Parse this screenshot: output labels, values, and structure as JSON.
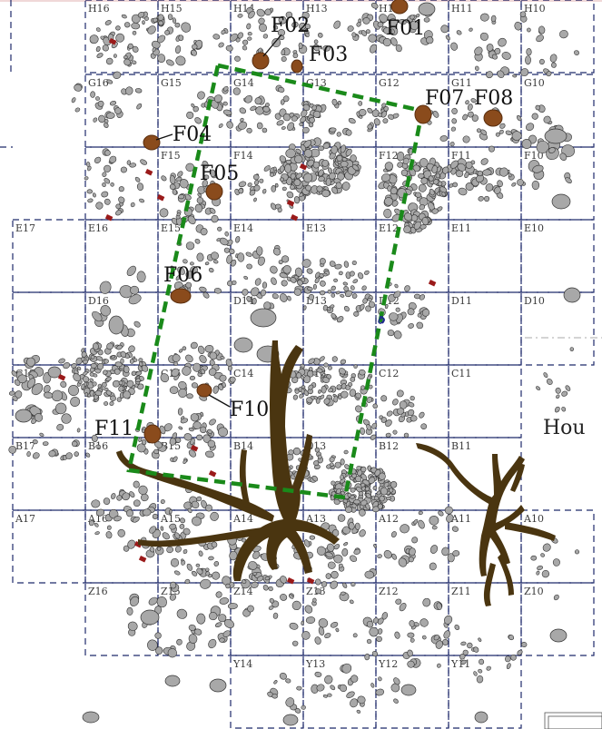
{
  "map": {
    "colors": {
      "grid": "#1f2a6b",
      "stone_fill": "#a8a8a8",
      "stone_stroke": "#333333",
      "feature_fill": "#8a4b1c",
      "feature_stroke": "#5a2e0e",
      "root_fill": "#4a3510",
      "trench": "#1a8a1a",
      "red_marker": "#9a1a1a"
    },
    "grid_labels": [
      {
        "id": "H16",
        "text": "H16"
      },
      {
        "id": "H15",
        "text": "H15"
      },
      {
        "id": "H14",
        "text": "H14"
      },
      {
        "id": "H13",
        "text": "H13"
      },
      {
        "id": "H12",
        "text": "H12"
      },
      {
        "id": "H11",
        "text": "H11"
      },
      {
        "id": "H10",
        "text": "H10"
      },
      {
        "id": "G16",
        "text": "G16"
      },
      {
        "id": "G15",
        "text": "G15"
      },
      {
        "id": "G14",
        "text": "G14"
      },
      {
        "id": "G13",
        "text": "G13"
      },
      {
        "id": "G12",
        "text": "G12"
      },
      {
        "id": "G11",
        "text": "G11"
      },
      {
        "id": "G10",
        "text": "G10"
      },
      {
        "id": "F15",
        "text": "F15"
      },
      {
        "id": "F14",
        "text": "F14"
      },
      {
        "id": "F12",
        "text": "F12"
      },
      {
        "id": "F11",
        "text": "F11"
      },
      {
        "id": "F10",
        "text": "F10"
      },
      {
        "id": "E17",
        "text": "E17"
      },
      {
        "id": "E16",
        "text": "E16"
      },
      {
        "id": "E15",
        "text": "E15"
      },
      {
        "id": "E14",
        "text": "E14"
      },
      {
        "id": "E13",
        "text": "E13"
      },
      {
        "id": "E12",
        "text": "E12"
      },
      {
        "id": "E11",
        "text": "E11"
      },
      {
        "id": "E10",
        "text": "E10"
      },
      {
        "id": "D16",
        "text": "D16"
      },
      {
        "id": "D14",
        "text": "D14"
      },
      {
        "id": "D13",
        "text": "D13"
      },
      {
        "id": "D12",
        "text": "D12"
      },
      {
        "id": "D11",
        "text": "D11"
      },
      {
        "id": "D10",
        "text": "D10"
      },
      {
        "id": "C17",
        "text": "C17"
      },
      {
        "id": "C15",
        "text": "C15"
      },
      {
        "id": "C14",
        "text": "C14"
      },
      {
        "id": "C13",
        "text": "C13"
      },
      {
        "id": "C12",
        "text": "C12"
      },
      {
        "id": "C11",
        "text": "C11"
      },
      {
        "id": "B17",
        "text": "B17"
      },
      {
        "id": "B16",
        "text": "B16"
      },
      {
        "id": "B15",
        "text": "B15"
      },
      {
        "id": "B14",
        "text": "B14"
      },
      {
        "id": "B13",
        "text": "B13"
      },
      {
        "id": "B12",
        "text": "B12"
      },
      {
        "id": "B11",
        "text": "B11"
      },
      {
        "id": "A17",
        "text": "A17"
      },
      {
        "id": "A16",
        "text": "A16"
      },
      {
        "id": "A15",
        "text": "A15"
      },
      {
        "id": "A14",
        "text": "A14"
      },
      {
        "id": "A13",
        "text": "A13"
      },
      {
        "id": "A12",
        "text": "A12"
      },
      {
        "id": "A11",
        "text": "A11"
      },
      {
        "id": "A10",
        "text": "A10"
      },
      {
        "id": "Z16",
        "text": "Z16"
      },
      {
        "id": "Z15",
        "text": "Z15"
      },
      {
        "id": "Z14",
        "text": "Z14"
      },
      {
        "id": "Z13",
        "text": "Z13"
      },
      {
        "id": "Z12",
        "text": "Z12"
      },
      {
        "id": "Z11",
        "text": "Z11"
      },
      {
        "id": "Z10",
        "text": "Z10"
      },
      {
        "id": "Y14",
        "text": "Y14"
      },
      {
        "id": "Y13",
        "text": "Y13"
      },
      {
        "id": "Y12",
        "text": "Y12"
      },
      {
        "id": "Y11",
        "text": "Y11"
      }
    ],
    "features": [
      {
        "id": "F01",
        "label": "F01"
      },
      {
        "id": "F02",
        "label": "F02"
      },
      {
        "id": "F03",
        "label": "F03"
      },
      {
        "id": "F04",
        "label": "F04"
      },
      {
        "id": "F05",
        "label": "F05"
      },
      {
        "id": "F06",
        "label": "F06"
      },
      {
        "id": "F07",
        "label": "F07"
      },
      {
        "id": "F08",
        "label": "F08"
      },
      {
        "id": "F10",
        "label": "F10"
      },
      {
        "id": "F11",
        "label": "F11"
      }
    ],
    "house_label": "Hou"
  }
}
